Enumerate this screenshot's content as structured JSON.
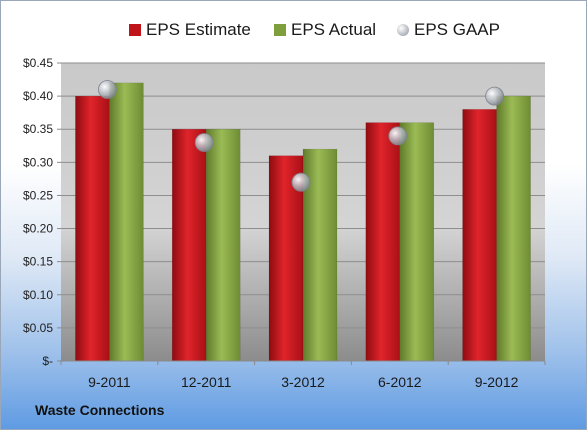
{
  "chart_data": {
    "type": "bar",
    "categories": [
      "9-2011",
      "12-2011",
      "3-2012",
      "6-2012",
      "9-2012"
    ],
    "series": [
      {
        "name": "EPS Estimate",
        "kind": "bar",
        "color": "#c0141b",
        "values": [
          0.4,
          0.35,
          0.31,
          0.36,
          0.38
        ]
      },
      {
        "name": "EPS Actual",
        "kind": "bar",
        "color": "#7f9e3c",
        "values": [
          0.42,
          0.35,
          0.32,
          0.36,
          0.4
        ]
      },
      {
        "name": "EPS GAAP",
        "kind": "marker",
        "color": "#b8bcc4",
        "values": [
          0.41,
          0.33,
          0.27,
          0.34,
          0.4
        ]
      }
    ],
    "yticks": [
      0,
      0.05,
      0.1,
      0.15,
      0.2,
      0.25,
      0.3,
      0.35,
      0.4,
      0.45
    ],
    "ytick_labels": [
      "$-",
      "$0.05",
      "$0.10",
      "$0.15",
      "$0.20",
      "$0.25",
      "$0.30",
      "$0.35",
      "$0.40",
      "$0.45"
    ],
    "ylim": [
      0,
      0.45
    ],
    "grid": true,
    "legend_position": "top"
  },
  "company_label": "Waste Connections"
}
